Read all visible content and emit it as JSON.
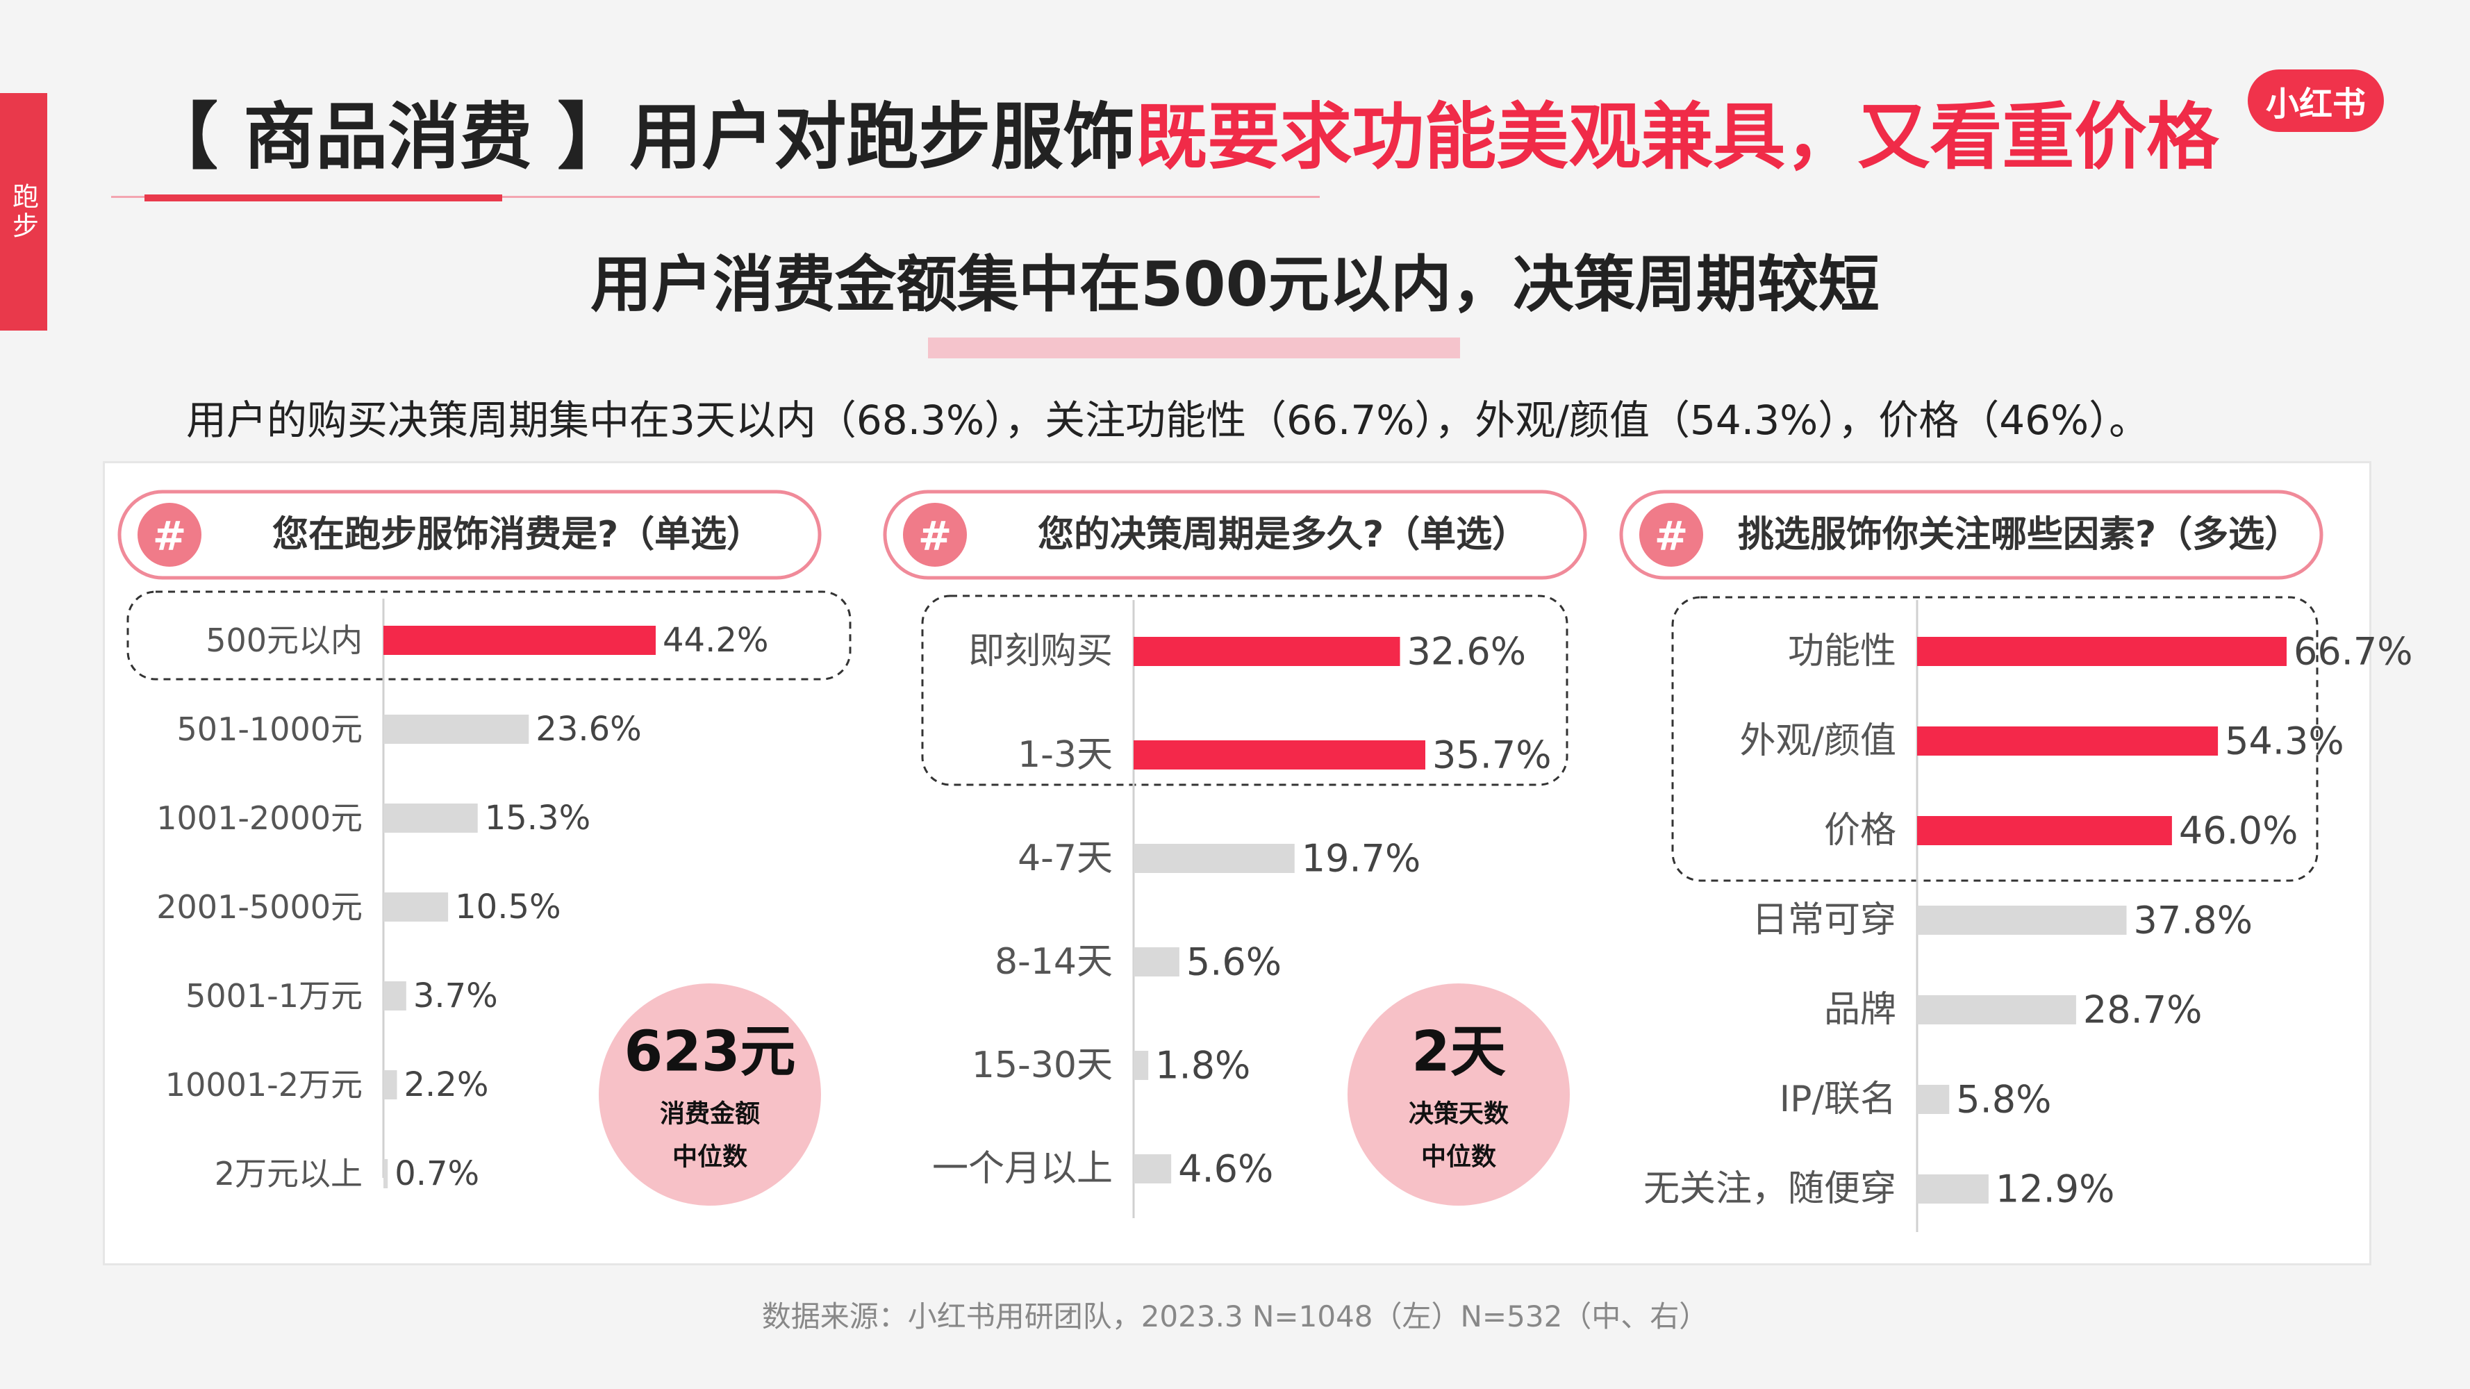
{
  "side_tab": "跑步",
  "logo": "小红书",
  "title": {
    "prefix": "【 商品消费 】用户对跑步服饰",
    "highlight": "既要求功能美观兼具，又看重价格"
  },
  "subtitle": "用户消费金额集中在500元以内，决策周期较短",
  "summary": "用户的购买决策周期集中在3天以内（68.3%），关注功能性（66.7%），外观/颜值（54.3%），价格（46%）。",
  "footer": "数据来源：小红书用研团队，2023.3 N=1048（左）N=532（中、右）",
  "colors": {
    "accent": "#f4284a",
    "grey_bar": "#d9d9d9",
    "pill_border": "#f08a99",
    "badge_bg": "#f7c1c7",
    "hash_bg": "#f07b89"
  },
  "chart_data": [
    {
      "type": "bar",
      "orientation": "horizontal",
      "title": "您在跑步服饰消费是?（单选）",
      "categories": [
        "500元以内",
        "501-1000元",
        "1001-2000元",
        "2001-5000元",
        "5001-1万元",
        "10001-2万元",
        "2万元以上"
      ],
      "values": [
        44.2,
        23.6,
        15.3,
        10.5,
        3.7,
        2.2,
        0.7
      ],
      "value_labels": [
        "44.2%",
        "23.6%",
        "15.3%",
        "10.5%",
        "3.7%",
        "2.2%",
        "0.7%"
      ],
      "highlighted": [
        0
      ],
      "badge": {
        "value": "623元",
        "line1": "消费金额",
        "line2": "中位数"
      }
    },
    {
      "type": "bar",
      "orientation": "horizontal",
      "title": "您的决策周期是多久?（单选）",
      "categories": [
        "即刻购买",
        "1-3天",
        "4-7天",
        "8-14天",
        "15-30天",
        "一个月以上"
      ],
      "values": [
        32.6,
        35.7,
        19.7,
        5.6,
        1.8,
        4.6
      ],
      "value_labels": [
        "32.6%",
        "35.7%",
        "19.7%",
        "5.6%",
        "1.8%",
        "4.6%"
      ],
      "highlighted": [
        0,
        1
      ],
      "badge": {
        "value": "2天",
        "line1": "决策天数",
        "line2": "中位数"
      }
    },
    {
      "type": "bar",
      "orientation": "horizontal",
      "title": "挑选服饰你关注哪些因素?（多选）",
      "categories": [
        "功能性",
        "外观/颜值",
        "价格",
        "日常可穿",
        "品牌",
        "IP/联名",
        "无关注，随便穿"
      ],
      "values": [
        66.7,
        54.3,
        46.0,
        37.8,
        28.7,
        5.8,
        12.9
      ],
      "value_labels": [
        "66.7%",
        "54.3%",
        "46.0%",
        "37.8%",
        "28.7%",
        "5.8%",
        "12.9%"
      ],
      "highlighted": [
        0,
        1,
        2
      ]
    }
  ]
}
